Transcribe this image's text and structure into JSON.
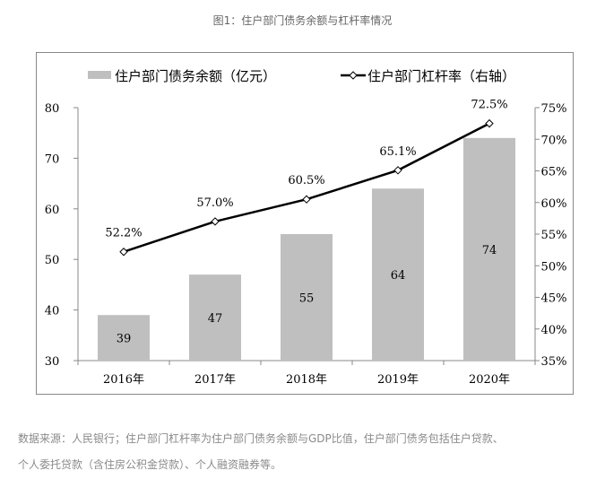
{
  "title": "图1：住户部门债务余额与杠杆率情况",
  "chart_data": {
    "type": "bar+line",
    "categories": [
      "2016年",
      "2017年",
      "2018年",
      "2019年",
      "2020年"
    ],
    "series": [
      {
        "name": "住户部门债务余额（亿元）",
        "type": "bar",
        "axis": "left",
        "values": [
          39,
          47,
          55,
          64,
          74
        ],
        "labels": [
          "39",
          "47",
          "55",
          "64",
          "74"
        ],
        "color": "#bfbfbf"
      },
      {
        "name": "住户部门杠杆率（右轴）",
        "type": "line",
        "axis": "right",
        "values": [
          52.2,
          57.0,
          60.5,
          65.1,
          72.5
        ],
        "labels": [
          "52.2%",
          "57.0%",
          "60.5%",
          "65.1%",
          "72.5%"
        ],
        "color": "#000000"
      }
    ],
    "left_axis": {
      "range": [
        30,
        80
      ],
      "ticks": [
        "30",
        "40",
        "50",
        "60",
        "70",
        "80"
      ]
    },
    "right_axis": {
      "range": [
        35,
        75
      ],
      "ticks": [
        "35%",
        "40%",
        "45%",
        "50%",
        "55%",
        "60%",
        "65%",
        "70%",
        "75%"
      ]
    },
    "legend_placement": "top"
  },
  "notes": [
    "数据来源：人民银行；住户部门杠杆率为住户部门债务余额与GDP比值，住户部门债务包括住户贷款、",
    "个人委托贷款（含住房公积金贷款）、个人融资融券等。"
  ]
}
